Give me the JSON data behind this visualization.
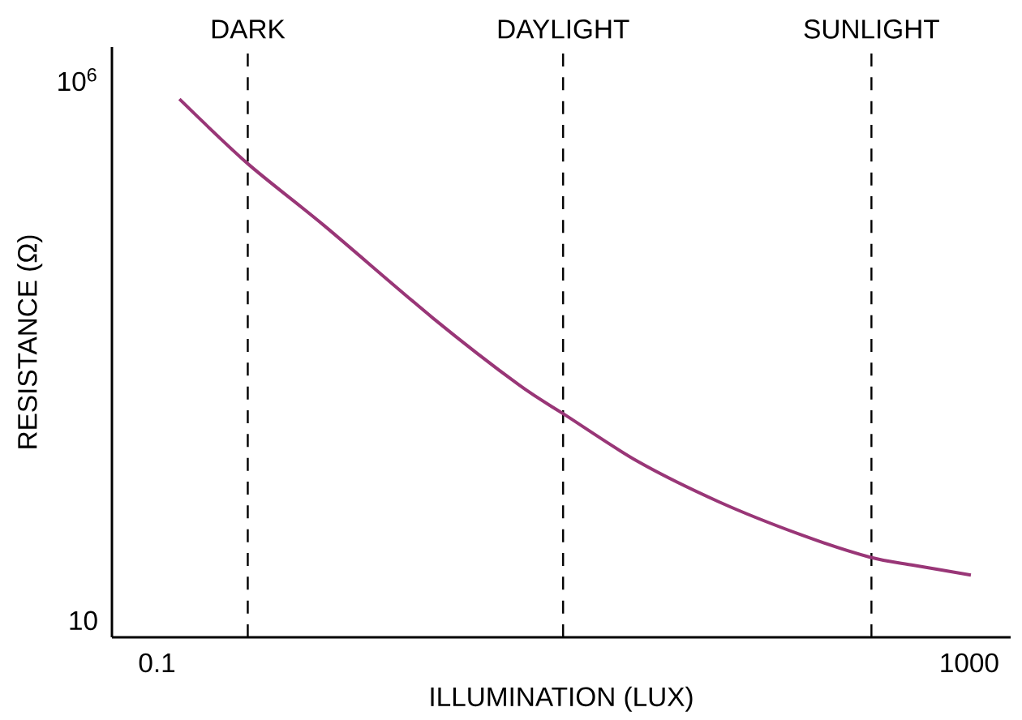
{
  "chart_data": {
    "type": "line",
    "xlabel": "ILLUMINATION (LUX)",
    "ylabel": "RESISTANCE (Ω)",
    "x": [
      0.129,
      0.28,
      0.667,
      2.28,
      6.08,
      10.4,
      23.3,
      58.6,
      147,
      325,
      535,
      1019
    ],
    "series": [
      {
        "color": "#993677",
        "values": [
          661000,
          167000,
          44600,
          6270,
          1500,
          780,
          296,
          125,
          62.5,
          38.5,
          32.4,
          26.3
        ]
      }
    ],
    "log": "xy",
    "xlim": [
      0.06,
      1600
    ],
    "ylim": [
      7,
      2000000
    ],
    "xticks": [
      0.1,
      1000
    ],
    "yticks": [
      10,
      {
        "value": 1000000,
        "label": "10$^{6}$"
      }
    ],
    "grid": false,
    "marker": "none",
    "line_style": "solid",
    "ref_lines": [
      {
        "axis": "x",
        "value": 0.28,
        "label": "DARK",
        "color": "#000000",
        "line_style": "dashed"
      },
      {
        "axis": "x",
        "value": 10,
        "label": "DAYLIGHT",
        "color": "#000000",
        "line_style": "dashed"
      },
      {
        "axis": "x",
        "value": 330,
        "label": "SUNLIGHT",
        "color": "#000000",
        "line_style": "dashed"
      }
    ]
  }
}
